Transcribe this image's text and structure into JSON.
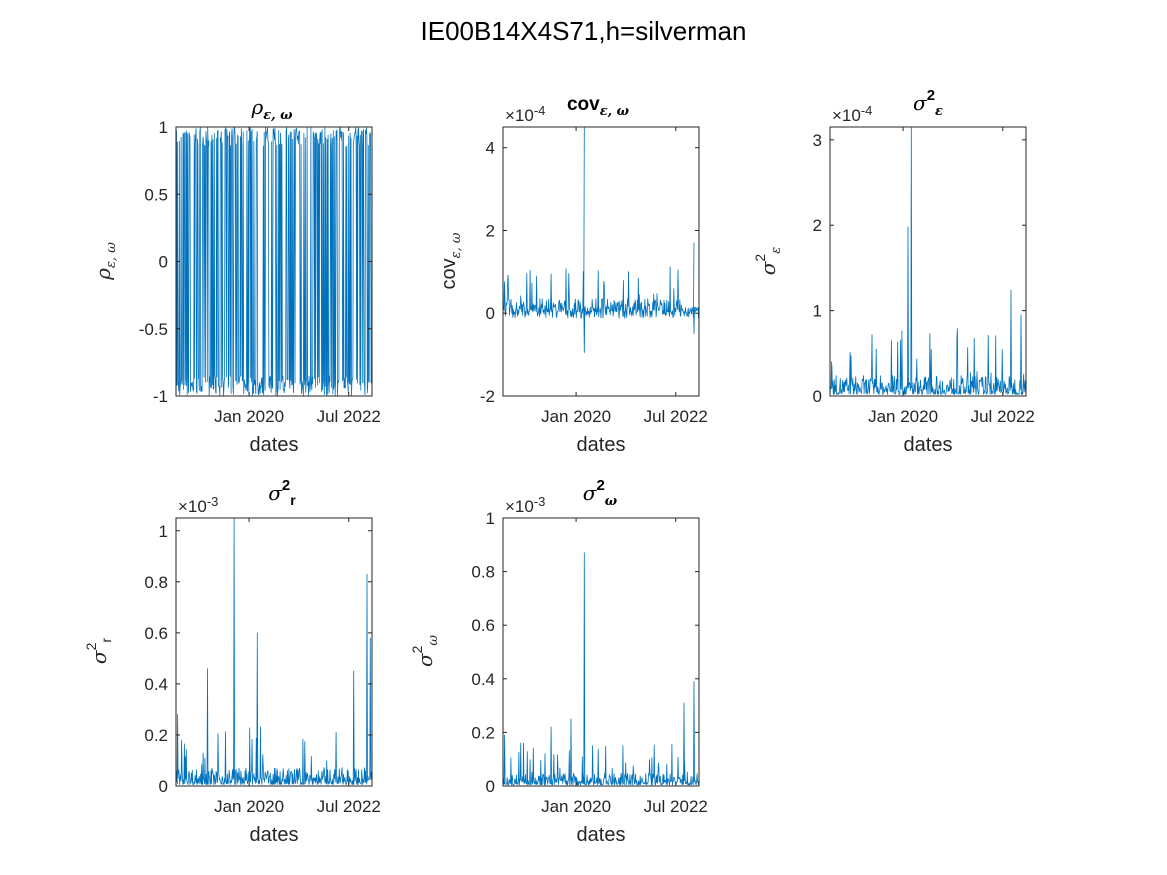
{
  "figure": {
    "title": "IE00B14X4S71,h=silverman",
    "line_color": "#0072BD"
  },
  "chart_data": [
    {
      "type": "line",
      "title": "ρ ε, ω",
      "xlabel": "dates",
      "ylabel": "ρ ε, ω",
      "x_ticks": [
        "Jan 2020",
        "Jul 2022"
      ],
      "ylim": [
        -1,
        1
      ],
      "y_ticks": [
        "-1",
        "-0.5",
        "0",
        "0.5",
        "1"
      ],
      "exponent": "",
      "x_start": "2018-03",
      "x_end": "2023-02",
      "pattern": "dense oscillation between -1 and 1 across entire range",
      "peaks": []
    },
    {
      "type": "line",
      "title": "cov ε, ω",
      "xlabel": "dates",
      "ylabel": "cov ε, ω",
      "x_ticks": [
        "Jan 2020",
        "Jul 2022"
      ],
      "ylim": [
        -2,
        4.5
      ],
      "y_ticks": [
        "-2",
        "0",
        "2",
        "4"
      ],
      "exponent": "×10-4",
      "x_start": "2018-03",
      "x_end": "2023-02",
      "baseline": 0.15,
      "peaks": [
        {
          "x": "2020-03",
          "y": 4.5
        },
        {
          "x": "2020-03",
          "y": -0.95
        },
        {
          "x": "2022-12",
          "y": 1.7
        },
        {
          "x": "2022-12",
          "y": -0.5
        },
        {
          "x": "2019-05",
          "y": 0.95
        },
        {
          "x": "2018-03",
          "y": 0.7
        }
      ]
    },
    {
      "type": "line",
      "title": "σ² ε",
      "xlabel": "dates",
      "ylabel": "σ² ε",
      "x_ticks": [
        "Jan 2020",
        "Jul 2022"
      ],
      "ylim": [
        0,
        3.15
      ],
      "y_ticks": [
        "0",
        "1",
        "2",
        "3"
      ],
      "exponent": "×10-4",
      "x_start": "2018-03",
      "x_end": "2023-02",
      "baseline": 0.1,
      "peaks": [
        {
          "x": "2020-03",
          "y": 3.15
        },
        {
          "x": "2020-02",
          "y": 1.98
        },
        {
          "x": "2022-09",
          "y": 1.24
        },
        {
          "x": "2022-12",
          "y": 0.95
        },
        {
          "x": "2019-09",
          "y": 0.65
        },
        {
          "x": "2018-03",
          "y": 0.4
        }
      ]
    },
    {
      "type": "line",
      "title": "σ² r",
      "xlabel": "dates",
      "ylabel": "σ² r",
      "x_ticks": [
        "Jan 2020",
        "Jul 2022"
      ],
      "ylim": [
        0,
        1.05
      ],
      "y_ticks": [
        "0",
        "0.2",
        "0.4",
        "0.6",
        "0.8",
        "1"
      ],
      "exponent": "×10-3",
      "x_start": "2018-03",
      "x_end": "2023-02",
      "baseline": 0.03,
      "peaks": [
        {
          "x": "2019-08",
          "y": 1.05
        },
        {
          "x": "2020-03",
          "y": 0.6
        },
        {
          "x": "2020-03",
          "y": 0.55
        },
        {
          "x": "2018-12",
          "y": 0.46
        },
        {
          "x": "2022-12",
          "y": 0.83
        },
        {
          "x": "2023-01",
          "y": 0.58
        },
        {
          "x": "2022-08",
          "y": 0.45
        },
        {
          "x": "2018-03",
          "y": 0.28
        }
      ]
    },
    {
      "type": "line",
      "title": "σ² ω",
      "xlabel": "dates",
      "ylabel": "σ² ω",
      "x_ticks": [
        "Jan 2020",
        "Jul 2022"
      ],
      "ylim": [
        0,
        1
      ],
      "y_ticks": [
        "0",
        "0.2",
        "0.4",
        "0.6",
        "0.8",
        "1"
      ],
      "exponent": "×10-3",
      "x_start": "2018-03",
      "x_end": "2023-02",
      "baseline": 0.02,
      "peaks": [
        {
          "x": "2020-03",
          "y": 0.87
        },
        {
          "x": "2019-11",
          "y": 0.25
        },
        {
          "x": "2022-09",
          "y": 0.31
        },
        {
          "x": "2022-12",
          "y": 0.39
        },
        {
          "x": "2018-03",
          "y": 0.19
        },
        {
          "x": "2019-05",
          "y": 0.22
        }
      ]
    }
  ]
}
